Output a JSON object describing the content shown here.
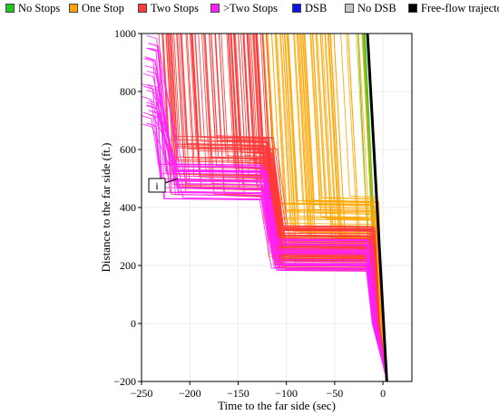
{
  "legend": [
    {
      "label": "No Stops",
      "color": "#22c81e"
    },
    {
      "label": "One Stop",
      "color": "#ffa500"
    },
    {
      "label": "Two Stops",
      "color": "#ff3a3a"
    },
    {
      "label": ">Two Stops",
      "color": "#ff1fff"
    },
    {
      "label": "DSB",
      "color": "#0a14e6"
    },
    {
      "label": "No DSB",
      "color": "#c4c4c4"
    },
    {
      "label": "Free-flow trajectory",
      "color": "#000000"
    }
  ],
  "annotation": "i",
  "chart_data": {
    "type": "line",
    "title": "",
    "xlabel": "Time to the far side (sec)",
    "ylabel": "Distance to the far side (ft.)",
    "xlim": [
      -250,
      30
    ],
    "ylim": [
      -200,
      1000
    ],
    "xticks": [
      -250,
      -200,
      -150,
      -100,
      -50,
      0
    ],
    "yticks": [
      -200,
      0,
      200,
      400,
      600,
      800,
      1000
    ],
    "grid": true,
    "legend_position": "top",
    "free_flow": {
      "name": "Free-flow trajectory",
      "x": [
        -16,
        4
      ],
      "y": [
        1000,
        -200
      ]
    },
    "trajectory_groups": [
      {
        "name": "No Stops",
        "color": "#22c81e",
        "count": 8,
        "entry_time_range": [
          -28,
          -16
        ],
        "queue_range": [
          400,
          450
        ]
      },
      {
        "name": "One Stop",
        "color": "#ffa500",
        "count": 70,
        "entry_time_range": [
          -135,
          -20
        ],
        "queue_range": [
          180,
          440
        ]
      },
      {
        "name": "Two Stops",
        "color": "#ff3a3a",
        "count": 90,
        "entry_time_range": [
          -235,
          -120
        ],
        "queue_range": [
          180,
          650
        ]
      },
      {
        "name": ">Two Stops",
        "color": "#ff1fff",
        "count": 30,
        "entry_time_range": [
          -250,
          -200
        ],
        "queue_range": [
          180,
          560
        ]
      }
    ]
  }
}
